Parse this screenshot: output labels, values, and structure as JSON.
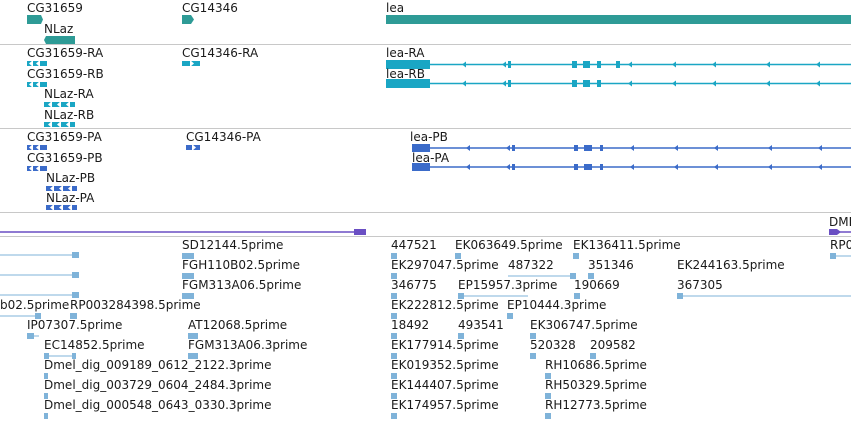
{
  "colors": {
    "gene": "#2e9b96",
    "transcript": "#1aa6c4",
    "protein": "#3b6bc9",
    "region": "#6a4fc3",
    "est": "#7fb3d9"
  },
  "genes": {
    "cg31659": "CG31659",
    "nlaz": "NLaz",
    "cg14346": "CG14346",
    "lea": "lea"
  },
  "transcripts": {
    "cg31659_ra": "CG31659-RA",
    "cg31659_rb": "CG31659-RB",
    "nlaz_ra": "NLaz-RA",
    "nlaz_rb": "NLaz-RB",
    "cg14346_ra": "CG14346-RA",
    "lea_ra": "lea-RA",
    "lea_rb": "lea-RB"
  },
  "proteins": {
    "cg31659_pa": "CG31659-PA",
    "cg31659_pb": "CG31659-PB",
    "nlaz_pb": "NLaz-PB",
    "nlaz_pa": "NLaz-PA",
    "cg14346_pa": "CG14346-PA",
    "lea_pb": "lea-PB",
    "lea_pa": "lea-PA"
  },
  "regions": {
    "dmel_cut": "DMEL"
  },
  "ests": {
    "sd12144": "SD12144.5prime",
    "fgh110b02": "FGH110B02.5prime",
    "fgm313a06": "FGM313A06.5prime",
    "b02_cut": "b02.5prime",
    "rp003284398": "RP003284398.5prime",
    "ip07307": "IP07307.5prime",
    "at12068": "AT12068.5prime",
    "ec14852": "EC14852.5prime",
    "fgm313a06_3": "FGM313A06.3prime",
    "dmel_009189": "Dmel_dig_009189_0612_2122.3prime",
    "dmel_003729": "Dmel_dig_003729_0604_2484.3prime",
    "dmel_000548": "Dmel_dig_000548_0643_0330.3prime",
    "e447521": "447521",
    "ek063649": "EK063649.5prime",
    "ek136411": "EK136411.5prime",
    "rp_cut": "RP0",
    "ek297047": "EK297047.5prime",
    "e487322": "487322",
    "e351346": "351346",
    "ek244163": "EK244163.5prime",
    "e346775": "346775",
    "ep15957": "EP15957.3prime",
    "e190669": "190669",
    "e367305": "367305",
    "ek222812": "EK222812.5prime",
    "ep10444": "EP10444.3prime",
    "e18492": "18492",
    "e493541": "493541",
    "ek306747": "EK306747.5prime",
    "ek177914": "EK177914.5prime",
    "e520328": "520328",
    "e209582": "209582",
    "ek019352": "EK019352.5prime",
    "rh10686": "RH10686.5prime",
    "ek144407": "EK144407.5prime",
    "rh50329": "RH50329.5prime",
    "ek174957": "EK174957.5prime",
    "rh12773": "RH12773.5prime"
  }
}
